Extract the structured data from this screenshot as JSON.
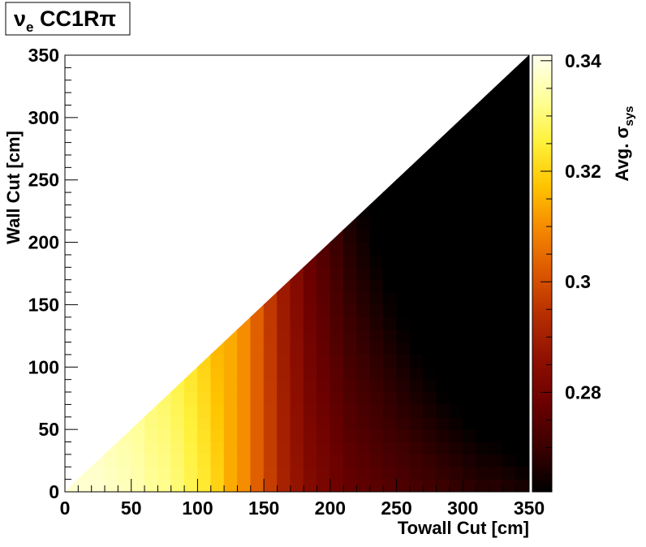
{
  "chart_data": {
    "type": "heatmap",
    "title": {
      "nu": "ν",
      "nu_sub": "e",
      "rest": " CC1Rπ"
    },
    "xlabel": "Towall Cut [cm]",
    "ylabel": "Wall Cut [cm]",
    "colorbar_label": {
      "prefix": "Avg. ",
      "sigma": "σ",
      "sub": "sys"
    },
    "xlim": [
      0,
      350
    ],
    "ylim": [
      0,
      350
    ],
    "x_ticks": [
      0,
      50,
      100,
      150,
      200,
      250,
      300,
      350
    ],
    "y_ticks": [
      0,
      50,
      100,
      150,
      200,
      250,
      300,
      350
    ],
    "zlim": [
      0.262,
      0.341
    ],
    "z_ticks": [
      0.28,
      0.3,
      0.32,
      0.34
    ],
    "z_tick_labels": [
      "0.28",
      "0.3",
      "0.32",
      "0.34"
    ],
    "bin_width": 10,
    "bins_x_start": 0,
    "bins_y_start": 0,
    "note_mask": "cells defined only where wall_cut <= towall_cut",
    "z_by_towall_column": [
      0.338,
      0.338,
      0.338,
      0.337,
      0.336,
      0.335,
      0.333,
      0.332,
      0.33,
      0.327,
      0.324,
      0.32,
      0.314,
      0.31,
      0.303,
      0.297,
      0.291,
      0.287,
      0.283,
      0.281,
      0.279,
      0.277,
      0.276,
      0.275,
      0.274,
      0.273,
      0.272,
      0.271,
      0.27,
      0.269,
      0.268,
      0.267,
      0.267,
      0.266,
      0.265
    ],
    "colormap": [
      "#000000",
      "#3a0000",
      "#6a0000",
      "#8e0f00",
      "#b42c00",
      "#db5600",
      "#f58700",
      "#ffc400",
      "#fff13a",
      "#ffff9a",
      "#fffff0"
    ]
  }
}
